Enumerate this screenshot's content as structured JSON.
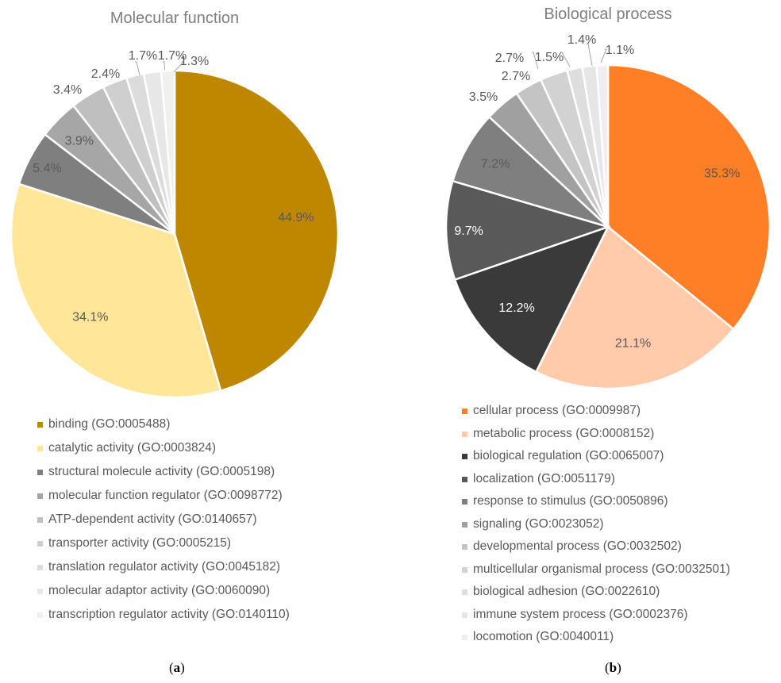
{
  "panels": {
    "a": {
      "caption_letter": "a"
    },
    "b": {
      "caption_letter": "b"
    }
  },
  "chart_data": [
    {
      "type": "pie",
      "title": "Molecular function",
      "categories": [
        "binding (GO:0005488)",
        "catalytic activity (GO:0003824)",
        "structural molecule activity (GO:0005198)",
        "molecular function regulator (GO:0098772)",
        "ATP-dependent activity (GO:0140657)",
        "transporter activity (GO:0005215)",
        "translation regulator activity (GO:0045182)",
        "molecular adaptor activity (GO:0060090)",
        "transcription regulator activity (GO:0140110)"
      ],
      "values": [
        44.9,
        34.1,
        5.4,
        3.9,
        3.4,
        2.4,
        1.7,
        1.7,
        1.3
      ],
      "labels": [
        "44.9%",
        "34.1%",
        "5.4%",
        "3.9%",
        "3.4%",
        "2.4%",
        "1.7%",
        "1.7%",
        "1.3%"
      ],
      "colors": [
        "#BF8700",
        "#FFE699",
        "#7F7F7F",
        "#A6A6A6",
        "#BFBFBF",
        "#CFCFCF",
        "#DCDCDC",
        "#E7E7E7",
        "#F0F0F0"
      ],
      "legend_position": "bottom"
    },
    {
      "type": "pie",
      "title": "Biological process",
      "categories": [
        "cellular process (GO:0009987)",
        "metabolic process (GO:0008152)",
        "biological regulation (GO:0065007)",
        "localization (GO:0051179)",
        "response to stimulus (GO:0050896)",
        "signaling (GO:0023052)",
        "developmental process (GO:0032502)",
        "multicellular organismal process (GO:0032501)",
        "biological adhesion (GO:0022610)",
        "immune system process (GO:0002376)",
        "locomotion (GO:0040011)"
      ],
      "values": [
        35.3,
        21.1,
        12.2,
        9.7,
        7.2,
        3.5,
        2.7,
        2.7,
        1.5,
        1.4,
        1.1
      ],
      "labels": [
        "35.3%",
        "21.1%",
        "12.2%",
        "9.7%",
        "7.2%",
        "3.5%",
        "2.7%",
        "2.7%",
        "1.5%",
        "1.4%",
        "1.1%"
      ],
      "colors": [
        "#FF7F27",
        "#FFCBAA",
        "#3A3A3A",
        "#595959",
        "#7F7F7F",
        "#A0A0A0",
        "#C4C4C4",
        "#D2D2D2",
        "#DEDEDE",
        "#E6E6E6",
        "#EEEEEE"
      ],
      "legend_position": "bottom"
    }
  ]
}
